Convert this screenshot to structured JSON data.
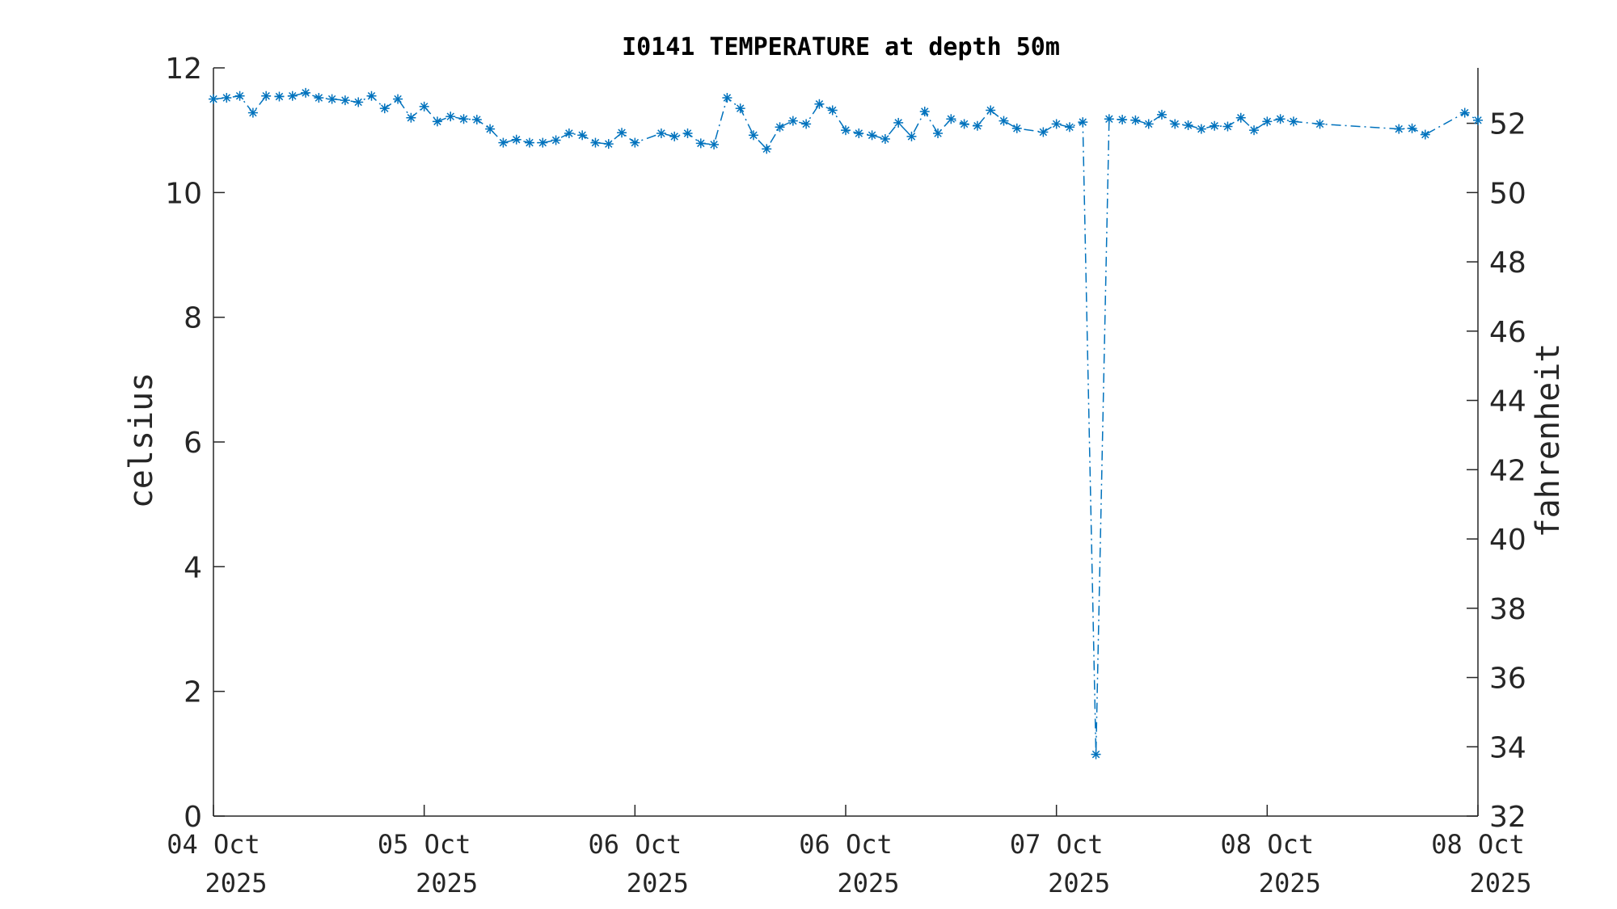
{
  "chart_data": {
    "type": "line",
    "title": "I0141 TEMPERATURE at depth 50m",
    "ylabel_left": "celsius",
    "ylabel_right": "fahrenheit",
    "ylim_left": [
      0,
      12
    ],
    "ylim_right": [
      32,
      53.6
    ],
    "yticks_left": [
      "0",
      "2",
      "4",
      "6",
      "8",
      "10",
      "12"
    ],
    "yticks_right": [
      "32",
      "34",
      "36",
      "38",
      "40",
      "42",
      "44",
      "46",
      "48",
      "50",
      "52"
    ],
    "xlim_days": [
      0,
      4.8
    ],
    "xticks": [
      {
        "line1": "04 Oct",
        "line2": "2025"
      },
      {
        "line1": "05 Oct",
        "line2": "2025"
      },
      {
        "line1": "06 Oct",
        "line2": "2025"
      },
      {
        "line1": "06 Oct",
        "line2": "2025"
      },
      {
        "line1": "07 Oct",
        "line2": "2025"
      },
      {
        "line1": "08 Oct",
        "line2": "2025"
      },
      {
        "line1": "08 Oct",
        "line2": "2025"
      }
    ],
    "grid": false,
    "line_style": "dash-dot",
    "marker": "asterisk",
    "color": "#0072bd",
    "series": [
      {
        "values": [
          [
            0.0,
            11.5
          ],
          [
            0.05,
            11.52
          ],
          [
            0.1,
            11.55
          ],
          [
            0.15,
            11.28
          ],
          [
            0.2,
            11.55
          ],
          [
            0.25,
            11.54
          ],
          [
            0.3,
            11.55
          ],
          [
            0.35,
            11.6
          ],
          [
            0.4,
            11.52
          ],
          [
            0.45,
            11.5
          ],
          [
            0.5,
            11.48
          ],
          [
            0.55,
            11.45
          ],
          [
            0.6,
            11.55
          ],
          [
            0.65,
            11.35
          ],
          [
            0.7,
            11.5
          ],
          [
            0.75,
            11.2
          ],
          [
            0.8,
            11.38
          ],
          [
            0.85,
            11.14
          ],
          [
            0.9,
            11.22
          ],
          [
            0.95,
            11.18
          ],
          [
            1.0,
            11.17
          ],
          [
            1.05,
            11.02
          ],
          [
            1.1,
            10.8
          ],
          [
            1.15,
            10.85
          ],
          [
            1.2,
            10.8
          ],
          [
            1.25,
            10.8
          ],
          [
            1.3,
            10.84
          ],
          [
            1.35,
            10.95
          ],
          [
            1.4,
            10.92
          ],
          [
            1.45,
            10.8
          ],
          [
            1.5,
            10.78
          ],
          [
            1.55,
            10.96
          ],
          [
            1.6,
            10.8
          ],
          [
            1.7,
            10.95
          ],
          [
            1.75,
            10.9
          ],
          [
            1.8,
            10.95
          ],
          [
            1.85,
            10.79
          ],
          [
            1.9,
            10.77
          ],
          [
            1.95,
            11.52
          ],
          [
            2.0,
            11.35
          ],
          [
            2.05,
            10.92
          ],
          [
            2.1,
            10.7
          ],
          [
            2.15,
            11.05
          ],
          [
            2.2,
            11.15
          ],
          [
            2.25,
            11.1
          ],
          [
            2.3,
            11.42
          ],
          [
            2.35,
            11.32
          ],
          [
            2.4,
            11.0
          ],
          [
            2.45,
            10.95
          ],
          [
            2.5,
            10.92
          ],
          [
            2.55,
            10.86
          ],
          [
            2.6,
            11.12
          ],
          [
            2.65,
            10.9
          ],
          [
            2.7,
            11.3
          ],
          [
            2.75,
            10.95
          ],
          [
            2.8,
            11.18
          ],
          [
            2.85,
            11.1
          ],
          [
            2.9,
            11.07
          ],
          [
            2.95,
            11.32
          ],
          [
            3.0,
            11.15
          ],
          [
            3.05,
            11.03
          ],
          [
            3.15,
            10.97
          ],
          [
            3.2,
            11.1
          ],
          [
            3.25,
            11.05
          ],
          [
            3.3,
            11.13
          ],
          [
            3.35,
            0.99
          ],
          [
            3.4,
            11.18
          ],
          [
            3.45,
            11.17
          ],
          [
            3.5,
            11.16
          ],
          [
            3.55,
            11.1
          ],
          [
            3.6,
            11.25
          ],
          [
            3.65,
            11.1
          ],
          [
            3.7,
            11.08
          ],
          [
            3.75,
            11.02
          ],
          [
            3.8,
            11.07
          ],
          [
            3.85,
            11.06
          ],
          [
            3.9,
            11.2
          ],
          [
            3.95,
            11.0
          ],
          [
            4.0,
            11.14
          ],
          [
            4.05,
            11.18
          ],
          [
            4.1,
            11.14
          ],
          [
            4.2,
            11.1
          ],
          [
            4.5,
            11.02
          ],
          [
            4.55,
            11.03
          ],
          [
            4.6,
            10.93
          ],
          [
            4.75,
            11.28
          ],
          [
            4.8,
            11.16
          ]
        ]
      }
    ]
  }
}
